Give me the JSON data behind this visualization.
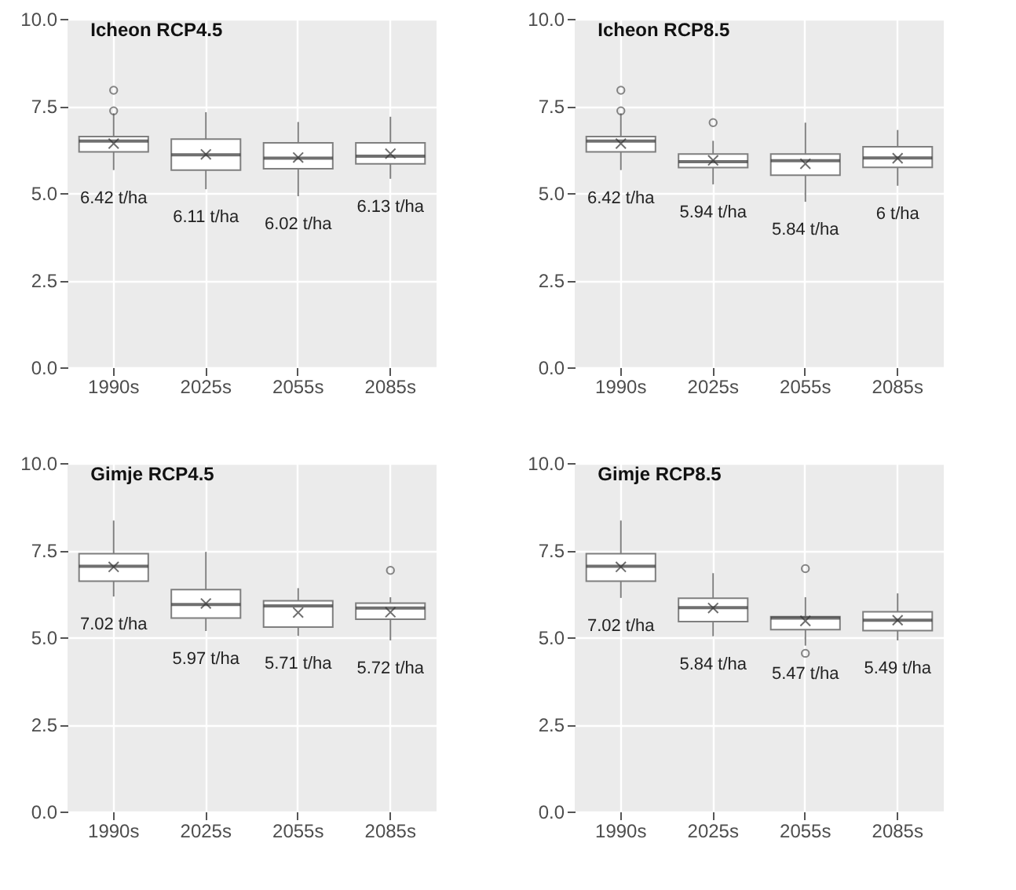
{
  "chart_data": [
    {
      "type": "box",
      "title": "Icheon RCP4.5",
      "categories": [
        "1990s",
        "2025s",
        "2055s",
        "2085s"
      ],
      "ylim": [
        0,
        10
      ],
      "yticks": [
        {
          "value": 0,
          "label": "0.0"
        },
        {
          "value": 2.5,
          "label": "2.5"
        },
        {
          "value": 5,
          "label": "5.0"
        },
        {
          "value": 7.5,
          "label": "7.5"
        },
        {
          "value": 10,
          "label": "10.0"
        }
      ],
      "grid": true,
      "boxes": [
        {
          "low": 5.66,
          "q1": 6.18,
          "median": 6.49,
          "q3": 6.62,
          "high": 7.29,
          "mean": 6.42,
          "outliers": [
            7.95,
            7.36
          ]
        },
        {
          "low": 5.11,
          "q1": 5.66,
          "median": 6.1,
          "q3": 6.55,
          "high": 7.32,
          "mean": 6.11
        },
        {
          "low": 4.91,
          "q1": 5.7,
          "median": 6.0,
          "q3": 6.44,
          "high": 7.04,
          "mean": 6.02
        },
        {
          "low": 5.41,
          "q1": 5.84,
          "median": 6.06,
          "q3": 6.44,
          "high": 7.19,
          "mean": 6.13
        }
      ],
      "annotations": [
        "6.42 t/ha",
        "6.11 t/ha",
        "6.02 t/ha",
        "6.13 t/ha"
      ]
    },
    {
      "type": "box",
      "title": "Icheon RCP8.5",
      "categories": [
        "1990s",
        "2025s",
        "2055s",
        "2085s"
      ],
      "ylim": [
        0,
        10
      ],
      "yticks": [
        {
          "value": 0,
          "label": "0.0"
        },
        {
          "value": 2.5,
          "label": "2.5"
        },
        {
          "value": 5,
          "label": "5.0"
        },
        {
          "value": 7.5,
          "label": "7.5"
        },
        {
          "value": 10,
          "label": "10.0"
        }
      ],
      "grid": true,
      "boxes": [
        {
          "low": 5.66,
          "q1": 6.18,
          "median": 6.49,
          "q3": 6.62,
          "high": 7.29,
          "mean": 6.42,
          "outliers": [
            7.95,
            7.36
          ]
        },
        {
          "low": 5.25,
          "q1": 5.73,
          "median": 5.9,
          "q3": 6.12,
          "high": 6.5,
          "mean": 5.94,
          "outliers": [
            7.02
          ]
        },
        {
          "low": 4.75,
          "q1": 5.51,
          "median": 5.93,
          "q3": 6.12,
          "high": 7.02,
          "mean": 5.84
        },
        {
          "low": 5.21,
          "q1": 5.74,
          "median": 6.01,
          "q3": 6.33,
          "high": 6.81,
          "mean": 6.0
        }
      ],
      "annotations": [
        "6.42 t/ha",
        "5.94 t/ha",
        "5.84 t/ha",
        "6 t/ha"
      ]
    },
    {
      "type": "box",
      "title": "Gimje RCP4.5",
      "categories": [
        "1990s",
        "2025s",
        "2055s",
        "2085s"
      ],
      "ylim": [
        0,
        10
      ],
      "yticks": [
        {
          "value": 0,
          "label": "0.0"
        },
        {
          "value": 2.5,
          "label": "2.5"
        },
        {
          "value": 5,
          "label": "5.0"
        },
        {
          "value": 7.5,
          "label": "7.5"
        },
        {
          "value": 10,
          "label": "10.0"
        }
      ],
      "grid": true,
      "boxes": [
        {
          "low": 6.17,
          "q1": 6.61,
          "median": 7.04,
          "q3": 7.4,
          "high": 8.35,
          "mean": 7.02
        },
        {
          "low": 5.18,
          "q1": 5.55,
          "median": 5.94,
          "q3": 6.37,
          "high": 7.45,
          "mean": 5.97
        },
        {
          "low": 5.04,
          "q1": 5.29,
          "median": 5.9,
          "q3": 6.05,
          "high": 6.41,
          "mean": 5.71
        },
        {
          "low": 4.91,
          "q1": 5.52,
          "median": 5.84,
          "q3": 5.98,
          "high": 6.15,
          "mean": 5.72,
          "outliers": [
            6.92
          ]
        }
      ],
      "annotations": [
        "7.02 t/ha",
        "5.97 t/ha",
        "5.71 t/ha",
        "5.72 t/ha"
      ]
    },
    {
      "type": "box",
      "title": "Gimje RCP8.5",
      "categories": [
        "1990s",
        "2025s",
        "2055s",
        "2085s"
      ],
      "ylim": [
        0,
        10
      ],
      "yticks": [
        {
          "value": 0,
          "label": "0.0"
        },
        {
          "value": 2.5,
          "label": "2.5"
        },
        {
          "value": 5,
          "label": "5.0"
        },
        {
          "value": 7.5,
          "label": "7.5"
        },
        {
          "value": 10,
          "label": "10.0"
        }
      ],
      "grid": true,
      "boxes": [
        {
          "low": 6.13,
          "q1": 6.61,
          "median": 7.04,
          "q3": 7.4,
          "high": 8.35,
          "mean": 7.02
        },
        {
          "low": 5.03,
          "q1": 5.45,
          "median": 5.85,
          "q3": 6.12,
          "high": 6.84,
          "mean": 5.84
        },
        {
          "low": 4.76,
          "q1": 5.22,
          "median": 5.55,
          "q3": 5.59,
          "high": 6.15,
          "mean": 5.47,
          "outliers": [
            6.97,
            4.54
          ]
        },
        {
          "low": 4.91,
          "q1": 5.19,
          "median": 5.49,
          "q3": 5.73,
          "high": 6.26,
          "mean": 5.49
        }
      ],
      "annotations": [
        "7.02 t/ha",
        "5.84 t/ha",
        "5.47 t/ha",
        "5.49 t/ha"
      ]
    }
  ]
}
